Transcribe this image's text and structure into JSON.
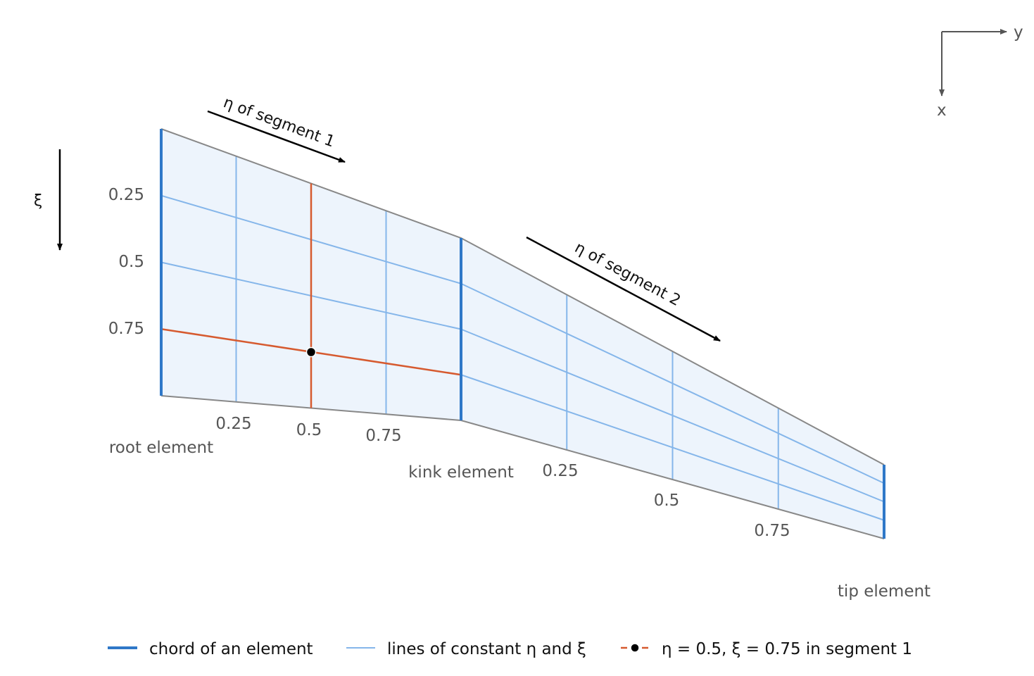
{
  "axes": {
    "y_label": "y",
    "x_label": "x",
    "xi_label": "ξ"
  },
  "arrows": {
    "segment1": "η of segment 1",
    "segment2": "η of segment 2"
  },
  "xi_ticks": [
    "0.25",
    "0.5",
    "0.75"
  ],
  "segment1_eta_ticks": [
    "0.25",
    "0.5",
    "0.75"
  ],
  "segment2_eta_ticks": [
    "0.25",
    "0.5",
    "0.75"
  ],
  "elements": {
    "root": "root element",
    "kink": "kink element",
    "tip": "tip element"
  },
  "legend": {
    "chord": "chord of an element",
    "lines": "lines of constant η and ξ",
    "point": "η = 0.5, ξ = 0.75 in segment 1"
  },
  "colors": {
    "chord": "#2f78c8",
    "grid": "#85b6ea",
    "fill": "#edf4fc",
    "highlight": "#d65a2f",
    "outline": "#888888"
  }
}
